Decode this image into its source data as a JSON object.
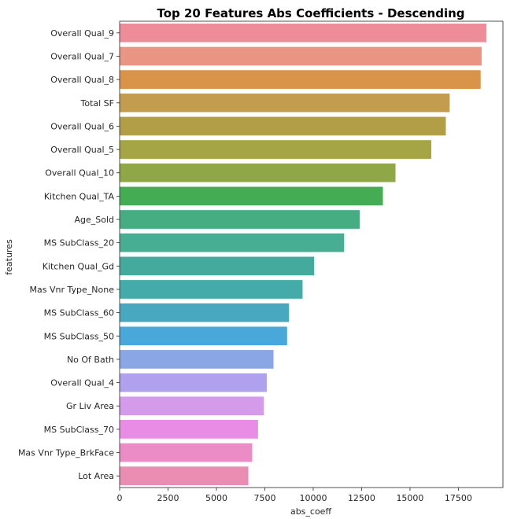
{
  "chart_data": {
    "type": "bar",
    "orientation": "horizontal",
    "title": "Top 20 Features Abs Coefficients - Descending",
    "xlabel": "abs_coeff",
    "ylabel": "features",
    "xlim": [
      0,
      19800
    ],
    "xticks": [
      0,
      2500,
      5000,
      7500,
      10000,
      12500,
      15000,
      17500
    ],
    "grid": false,
    "legend": "none",
    "categories": [
      "Overall Qual_9",
      "Overall Qual_7",
      "Overall Qual_8",
      "Total SF",
      "Overall Qual_6",
      "Overall Qual_5",
      "Overall Qual_10",
      "Kitchen Qual_TA",
      "Age_Sold",
      "MS SubClass_20",
      "Kitchen Qual_Gd",
      "Mas Vnr Type_None",
      "MS SubClass_60",
      "MS SubClass_50",
      "No Of Bath",
      "Overall Qual_4",
      "Gr Liv Area",
      "MS SubClass_70",
      "Mas Vnr Type_BrkFace",
      "Lot Area"
    ],
    "values": [
      18950,
      18700,
      18650,
      17050,
      16850,
      16100,
      14250,
      13600,
      12400,
      11600,
      10050,
      9450,
      8750,
      8650,
      7950,
      7600,
      7450,
      7150,
      6850,
      6650
    ],
    "colors": [
      "#ee8c9a",
      "#e89583",
      "#d99449",
      "#c29d4f",
      "#b29e47",
      "#a6a545",
      "#8fa746",
      "#44ad54",
      "#46ad82",
      "#47ae93",
      "#43aa9d",
      "#45ab aa",
      "#48a8bf",
      "#4aa7d9",
      "#8ba6e4",
      "#b0a1ee",
      "#d39be9",
      "#e98ce6",
      "#eb8cc6",
      "#e98db2"
    ]
  }
}
